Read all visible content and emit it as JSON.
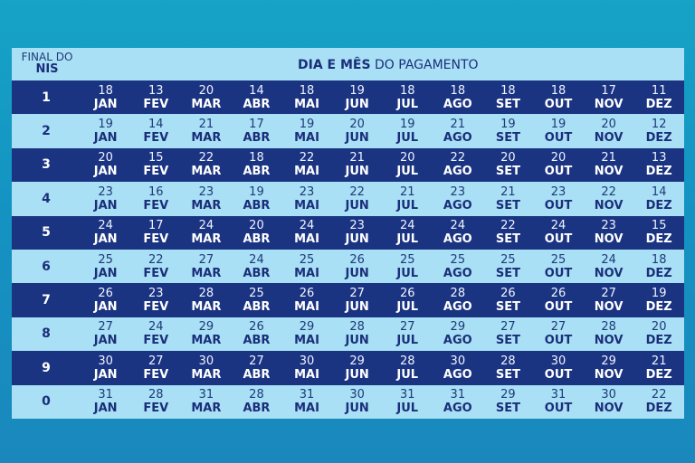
{
  "header": {
    "final_line1": "FINAL DO",
    "final_line2": "NIS",
    "title_bold": "DIA E MÊS",
    "title_rest": "DO PAGAMENTO"
  },
  "months": [
    "JAN",
    "FEV",
    "MAR",
    "ABR",
    "MAI",
    "JUN",
    "JUL",
    "AGO",
    "SET",
    "OUT",
    "NOV",
    "DEZ"
  ],
  "rows": [
    {
      "nis": "1",
      "days": [
        "18",
        "13",
        "20",
        "14",
        "18",
        "19",
        "18",
        "18",
        "18",
        "18",
        "17",
        "11"
      ]
    },
    {
      "nis": "2",
      "days": [
        "19",
        "14",
        "21",
        "17",
        "19",
        "20",
        "19",
        "21",
        "19",
        "19",
        "20",
        "12"
      ]
    },
    {
      "nis": "3",
      "days": [
        "20",
        "15",
        "22",
        "18",
        "22",
        "21",
        "20",
        "22",
        "20",
        "20",
        "21",
        "13"
      ]
    },
    {
      "nis": "4",
      "days": [
        "23",
        "16",
        "23",
        "19",
        "23",
        "22",
        "21",
        "23",
        "21",
        "23",
        "22",
        "14"
      ]
    },
    {
      "nis": "5",
      "days": [
        "24",
        "17",
        "24",
        "20",
        "24",
        "23",
        "24",
        "24",
        "22",
        "24",
        "23",
        "15"
      ]
    },
    {
      "nis": "6",
      "days": [
        "25",
        "22",
        "27",
        "24",
        "25",
        "26",
        "25",
        "25",
        "25",
        "25",
        "24",
        "18"
      ]
    },
    {
      "nis": "7",
      "days": [
        "26",
        "23",
        "28",
        "25",
        "26",
        "27",
        "26",
        "28",
        "26",
        "26",
        "27",
        "19"
      ]
    },
    {
      "nis": "8",
      "days": [
        "27",
        "24",
        "29",
        "26",
        "29",
        "28",
        "27",
        "29",
        "27",
        "27",
        "28",
        "20"
      ]
    },
    {
      "nis": "9",
      "days": [
        "30",
        "27",
        "30",
        "27",
        "30",
        "29",
        "28",
        "30",
        "28",
        "30",
        "29",
        "21"
      ]
    },
    {
      "nis": "0",
      "days": [
        "31",
        "28",
        "31",
        "28",
        "31",
        "30",
        "31",
        "31",
        "29",
        "31",
        "30",
        "22"
      ]
    }
  ]
}
